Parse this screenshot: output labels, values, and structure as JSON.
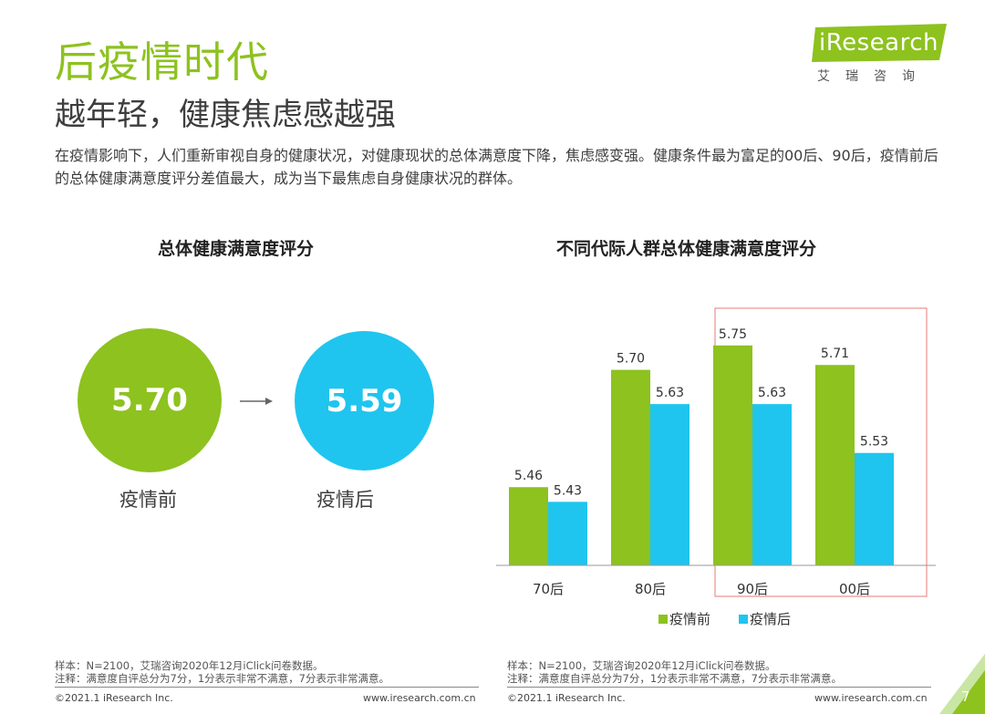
{
  "header": {
    "title": "后疫情时代",
    "subtitle": "越年轻，健康焦虑感越强",
    "description": "在疫情影响下，人们重新审视自身的健康状况，对健康现状的总体满意度下降，焦虑感变强。健康条件最为富足的00后、90后，疫情前后的总体健康满意度评分差值最大，成为当下最焦虑自身健康状况的群体。"
  },
  "logo": {
    "word": "iResearch",
    "sub": "艾瑞咨询"
  },
  "left_panel": {
    "title": "总体健康满意度评分",
    "before": {
      "value": "5.70",
      "label": "疫情前"
    },
    "after": {
      "value": "5.59",
      "label": "疫情后"
    }
  },
  "right_panel": {
    "title": "不同代际人群总体健康满意度评分"
  },
  "chart_data": {
    "type": "bar",
    "title": "不同代际人群总体健康满意度评分",
    "categories": [
      "70后",
      "80后",
      "90后",
      "00后"
    ],
    "series": [
      {
        "name": "疫情前",
        "values": [
          5.46,
          5.7,
          5.75,
          5.71
        ],
        "color": "#8dc21f"
      },
      {
        "name": "疫情后",
        "values": [
          5.43,
          5.63,
          5.63,
          5.53
        ],
        "color": "#1fc5ee"
      }
    ],
    "ylim": [
      5.3,
      5.8
    ],
    "xlabel": "",
    "ylabel": "",
    "legend": "bottom",
    "highlight_categories": [
      "90后",
      "00后"
    ],
    "highlight_color": "#e8787a"
  },
  "notes": {
    "left": {
      "sample": "样本：N=2100，艾瑞咨询2020年12月iClick问卷数据。",
      "note": "注释：满意度自评总分为7分，1分表示非常不满意，7分表示非常满意。"
    },
    "right": {
      "sample": "样本：N=2100，艾瑞咨询2020年12月iClick问卷数据。",
      "note": "注释：满意度自评总分为7分，1分表示非常不满意，7分表示非常满意。"
    }
  },
  "footer": {
    "left_copyright": "©2021.1 iResearch Inc.",
    "left_url": "www.iresearch.com.cn",
    "right_copyright": "©2021.1 iResearch Inc.",
    "right_url": "www.iresearch.com.cn",
    "page_number": "7"
  },
  "colors": {
    "green": "#8dc21f",
    "blue": "#1fc5ee",
    "highlight": "#e8787a"
  }
}
